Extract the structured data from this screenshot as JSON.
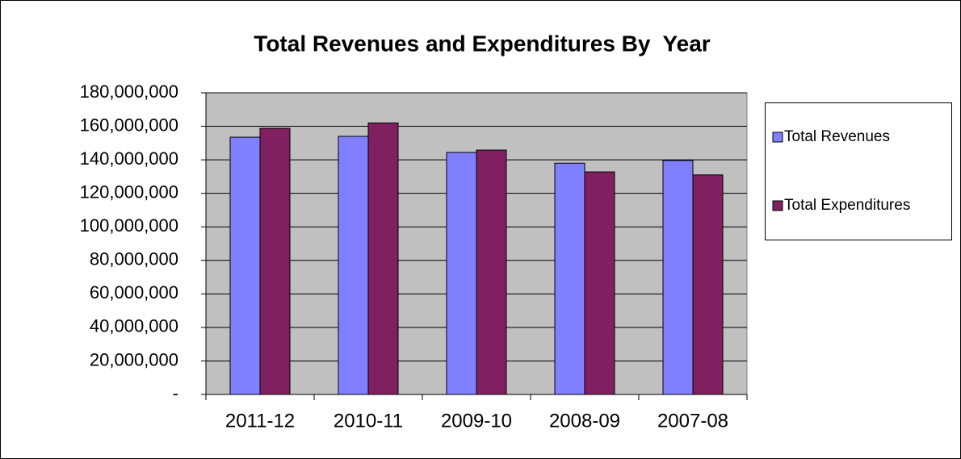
{
  "chart_data": {
    "type": "bar",
    "title": "Total Revenues and Expenditures By  Year",
    "categories": [
      "2011-12",
      "2010-11",
      "2009-10",
      "2008-09",
      "2007-08"
    ],
    "series": [
      {
        "name": "Total Revenues",
        "color": "#8080ff",
        "values": [
          153500000,
          154000000,
          144400000,
          138000000,
          139600000
        ]
      },
      {
        "name": "Total Expenditures",
        "color": "#802060",
        "values": [
          158800000,
          162000000,
          145800000,
          132800000,
          131000000
        ]
      }
    ],
    "ylim": [
      0,
      180000000
    ],
    "yticks": [
      {
        "value": 0,
        "label": "-"
      },
      {
        "value": 20000000,
        "label": "20,000,000"
      },
      {
        "value": 40000000,
        "label": "40,000,000"
      },
      {
        "value": 60000000,
        "label": "60,000,000"
      },
      {
        "value": 80000000,
        "label": "80,000,000"
      },
      {
        "value": 100000000,
        "label": "100,000,000"
      },
      {
        "value": 120000000,
        "label": "120,000,000"
      },
      {
        "value": 140000000,
        "label": "140,000,000"
      },
      {
        "value": 160000000,
        "label": "160,000,000"
      },
      {
        "value": 180000000,
        "label": "180,000,000"
      }
    ],
    "grid": true,
    "legend": "right"
  }
}
